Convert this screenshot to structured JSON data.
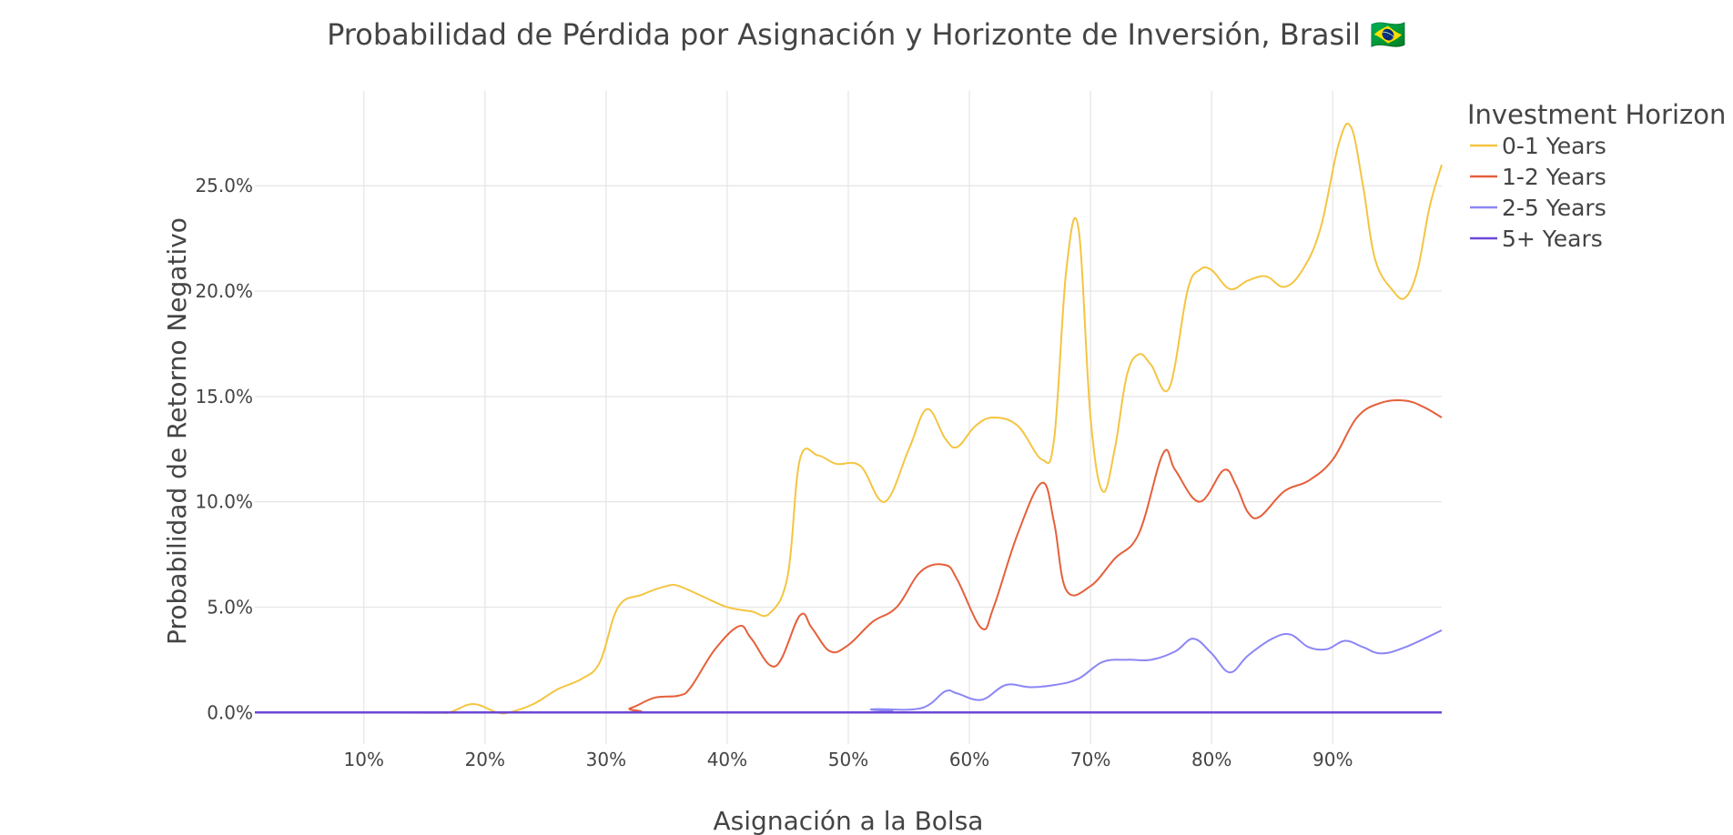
{
  "chart_data": {
    "type": "line",
    "title": "Probabilidad de Pérdida por Asignación y Horizonte de Inversión, Brasil 🇧🇷",
    "xlabel": "Asignación a la Bolsa",
    "ylabel": "Probabilidad de Retorno Negativo",
    "xlim": [
      1,
      99
    ],
    "ylim": [
      -1.5,
      29.5
    ],
    "x_ticks": [
      10,
      20,
      30,
      40,
      50,
      60,
      70,
      80,
      90
    ],
    "x_tick_labels": [
      "10%",
      "20%",
      "30%",
      "40%",
      "50%",
      "60%",
      "70%",
      "80%",
      "90%"
    ],
    "y_ticks": [
      0,
      5,
      10,
      15,
      20,
      25
    ],
    "y_tick_labels": [
      "0.0%",
      "5.0%",
      "10.0%",
      "15.0%",
      "20.0%",
      "25.0%"
    ],
    "grid": true,
    "legend": {
      "title": "Investment Horizon",
      "placement": "top-right"
    },
    "series": [
      {
        "name": "0-1 Years",
        "color": "#f4c542",
        "x": [
          1,
          15,
          17,
          19,
          21,
          22,
          24,
          26,
          28,
          29.5,
          31,
          33,
          35,
          36,
          38,
          40,
          42,
          43.5,
          45,
          46,
          47.5,
          49,
          51,
          53,
          55,
          56.5,
          58,
          59,
          60.5,
          62,
          64,
          66,
          67,
          68,
          69,
          70,
          71,
          72,
          73,
          74,
          75,
          76.5,
          78,
          79,
          80,
          81.5,
          83,
          84.5,
          86,
          87.5,
          89,
          90.5,
          91.5,
          92.5,
          93.5,
          95,
          96,
          97,
          98,
          99
        ],
        "y": [
          0,
          0,
          0,
          0.4,
          0,
          0,
          0.4,
          1.1,
          1.6,
          2.4,
          5,
          5.6,
          6,
          6,
          5.5,
          5,
          4.8,
          4.7,
          6.5,
          12,
          12.2,
          11.8,
          11.7,
          10,
          12.5,
          14.4,
          13,
          12.6,
          13.6,
          14,
          13.6,
          12,
          13,
          21,
          23,
          14,
          10.5,
          12.5,
          16,
          17,
          16.5,
          15.4,
          20,
          21,
          21,
          20.1,
          20.5,
          20.7,
          20.2,
          21,
          23,
          27,
          27.8,
          25,
          21.5,
          20,
          19.7,
          21,
          24,
          26
        ]
      },
      {
        "name": "1-2 Years",
        "color": "#e5603b",
        "x": [
          1,
          30,
          32,
          34,
          36,
          37,
          39,
          41,
          42,
          44,
          46,
          47,
          48.5,
          50,
          52,
          54,
          56,
          58,
          59,
          61,
          62,
          64,
          66,
          67,
          68,
          70,
          72,
          74,
          76,
          77,
          79,
          81,
          82,
          83,
          84,
          86,
          88,
          90,
          92,
          94,
          96,
          97.5,
          99
        ],
        "y": [
          0,
          0,
          0.2,
          0.7,
          0.8,
          1.2,
          3,
          4.1,
          3.5,
          2.2,
          4.6,
          4,
          2.9,
          3.2,
          4.3,
          5,
          6.7,
          7,
          6.3,
          4,
          5,
          8.5,
          10.9,
          9,
          5.8,
          6,
          7.3,
          8.5,
          12.3,
          11.5,
          10,
          11.5,
          10.8,
          9.5,
          9.3,
          10.5,
          11,
          12,
          14,
          14.7,
          14.8,
          14.5,
          14
        ]
      },
      {
        "name": "2-5 Years",
        "color": "#8c86f5",
        "x": [
          1,
          49,
          52,
          56,
          58,
          59,
          61,
          63,
          65,
          67,
          69,
          71,
          73,
          75,
          77,
          78.5,
          80,
          81.5,
          83,
          85,
          86.5,
          88,
          89.5,
          91,
          92.5,
          94,
          96,
          99
        ],
        "y": [
          0,
          0,
          0.15,
          0.2,
          1,
          0.9,
          0.6,
          1.3,
          1.2,
          1.3,
          1.6,
          2.4,
          2.5,
          2.5,
          2.9,
          3.5,
          2.8,
          1.9,
          2.7,
          3.5,
          3.7,
          3.1,
          3,
          3.4,
          3.1,
          2.8,
          3.1,
          3.9
        ]
      },
      {
        "name": "5+ Years",
        "color": "#6c47d6",
        "x": [
          1,
          99
        ],
        "y": [
          0,
          0
        ]
      }
    ]
  }
}
